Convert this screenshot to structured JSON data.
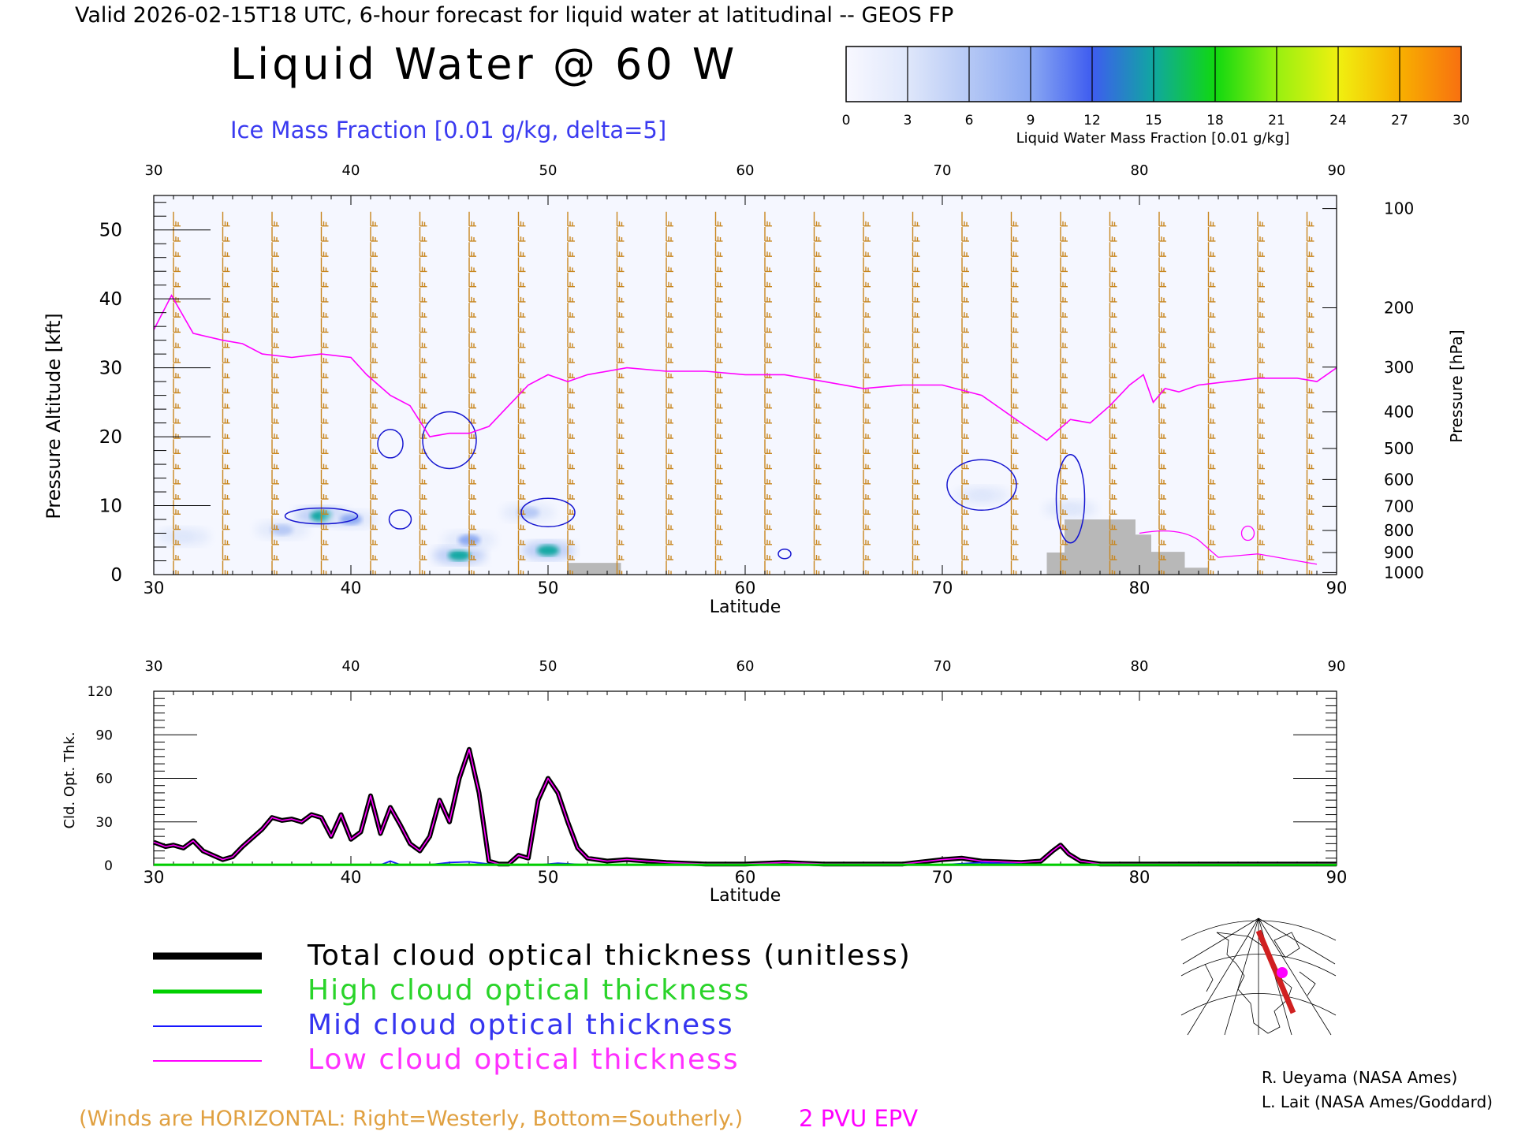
{
  "header": {
    "valid_line": "Valid 2026-02-15T18 UTC, 6-hour forecast for liquid water at latitudinal -- GEOS FP",
    "title": "Liquid Water @ 60 W",
    "subtitle": "Ice Mass Fraction [0.01 g/kg, delta=5]"
  },
  "colorbar": {
    "label": "Liquid Water Mass Fraction [0.01 g/kg]",
    "ticks": [
      "0",
      "3",
      "6",
      "9",
      "12",
      "15",
      "18",
      "21",
      "24",
      "27",
      "30"
    ],
    "colors": [
      "#f8f8ff",
      "#dfe7fb",
      "#b5c8f5",
      "#8aa8f2",
      "#3e5cf0",
      "#10a7a0",
      "#10d810",
      "#98f010",
      "#f0f010",
      "#f8b000",
      "#f87010"
    ]
  },
  "colors": {
    "wind_barb": "#c8861e",
    "epv": "#ff00ff",
    "ice_contour": "#1515d0",
    "terrain": "#b8b8b8",
    "total": "#000000",
    "high": "#00d000",
    "mid": "#1515ff",
    "low": "#ff00ff"
  },
  "chart_data": [
    {
      "type": "heatmap",
      "xlabel": "Latitude",
      "ylabel": "Pressure Altitude [kft]",
      "y2label": "Pressure [hPa]",
      "xlim": [
        30,
        90
      ],
      "ylim": [
        0,
        55
      ],
      "x_ticks": [
        "30",
        "40",
        "50",
        "60",
        "70",
        "80",
        "90"
      ],
      "y_ticks": [
        "0",
        "10",
        "20",
        "30",
        "40",
        "50"
      ],
      "pressure_ticks": [
        "100",
        "200",
        "300",
        "400",
        "500",
        "600",
        "700",
        "800",
        "900",
        "1000"
      ],
      "pressure_tick_kft": [
        53.1,
        38.7,
        30.1,
        23.6,
        18.3,
        13.8,
        9.9,
        6.4,
        3.2,
        0.3
      ],
      "epv_2pvu_line": {
        "lat": [
          30,
          30.9,
          32,
          33.5,
          34.5,
          35.5,
          37,
          38.5,
          40,
          40.8,
          42,
          43,
          44,
          45,
          46,
          47,
          48,
          49,
          50,
          51,
          52,
          54,
          56,
          58,
          60,
          62,
          64,
          66,
          68,
          70,
          72,
          74,
          75.3,
          76.5,
          77.5,
          78.5,
          79.5,
          80.2,
          80.7,
          81.3,
          82,
          83,
          84.5,
          86,
          88,
          89,
          90
        ],
        "kft": [
          35.5,
          40.5,
          35,
          34,
          33.5,
          32,
          31.5,
          32,
          31.5,
          29,
          26,
          24.5,
          20,
          20.5,
          20.5,
          21.5,
          24.5,
          27.5,
          29,
          28,
          29,
          30,
          29.5,
          29.5,
          29,
          29,
          28,
          27,
          27.5,
          27.5,
          26,
          22,
          19.5,
          22.5,
          22,
          24.5,
          27.5,
          29,
          25,
          27,
          26.5,
          27.5,
          28,
          28.5,
          28.5,
          28,
          30
        ]
      },
      "terrain_blocks": [
        {
          "lat": [
            51,
            53.7
          ],
          "kft": 1.7
        },
        {
          "lat": [
            75.3,
            76.2
          ],
          "kft": 3.2
        },
        {
          "lat": [
            76.2,
            79.8
          ],
          "kft": 8.0
        },
        {
          "lat": [
            79.8,
            80.6
          ],
          "kft": 5.8
        },
        {
          "lat": [
            80.6,
            82.3
          ],
          "kft": 3.3
        },
        {
          "lat": [
            82.3,
            83.5
          ],
          "kft": 1.0
        }
      ],
      "liquid_water_patches": [
        {
          "lat": 38.5,
          "kft": 8.5,
          "value": 15
        },
        {
          "lat": 36.5,
          "kft": 6.5,
          "value": 6
        },
        {
          "lat": 40.0,
          "kft": 8.0,
          "value": 9
        },
        {
          "lat": 45.5,
          "kft": 2.8,
          "value": 16
        },
        {
          "lat": 46.0,
          "kft": 5.0,
          "value": 9
        },
        {
          "lat": 50.0,
          "kft": 3.5,
          "value": 16
        },
        {
          "lat": 49.0,
          "kft": 9.0,
          "value": 6
        },
        {
          "lat": 31.5,
          "kft": 5.5,
          "value": 3
        },
        {
          "lat": 72.0,
          "kft": 11.5,
          "value": 3
        },
        {
          "lat": 76.5,
          "kft": 9.5,
          "value": 3
        }
      ]
    },
    {
      "type": "line",
      "xlabel": "Latitude",
      "ylabel": "Cld. Opt. Thk.",
      "xlim": [
        30,
        90
      ],
      "ylim": [
        0,
        120
      ],
      "x_ticks": [
        "30",
        "40",
        "50",
        "60",
        "70",
        "80",
        "90"
      ],
      "y_ticks": [
        "0",
        "30",
        "60",
        "90",
        "120"
      ],
      "series": [
        {
          "name": "Total cloud optical thickness (unitless)",
          "color": "#000000",
          "lat": [
            30,
            30.6,
            31,
            31.5,
            32,
            32.5,
            33,
            33.5,
            34,
            34.5,
            35,
            35.5,
            36,
            36.5,
            37,
            37.5,
            38,
            38.5,
            39,
            39.5,
            40,
            40.5,
            41,
            41.5,
            42,
            42.5,
            43,
            43.5,
            44,
            44.5,
            45,
            45.5,
            46,
            46.5,
            47,
            47.5,
            48,
            48.5,
            49,
            49.5,
            50,
            50.5,
            51,
            51.5,
            52,
            53,
            54,
            55,
            56,
            58,
            60,
            62,
            64,
            66,
            68,
            70,
            71,
            72,
            74,
            75,
            75.6,
            76,
            76.4,
            77,
            78,
            80,
            82,
            84,
            86,
            88,
            90
          ],
          "values": [
            16,
            13,
            14,
            12,
            17,
            10,
            7,
            4,
            6,
            13,
            19,
            25,
            33,
            31,
            32,
            30,
            35,
            33,
            20,
            35,
            18,
            23,
            48,
            22,
            40,
            28,
            15,
            10,
            20,
            45,
            30,
            60,
            80,
            50,
            3,
            1,
            1,
            7,
            5,
            45,
            60,
            50,
            30,
            12,
            5,
            3,
            4,
            3,
            2,
            1,
            1,
            2,
            1,
            1,
            1,
            4,
            5,
            3,
            2,
            3,
            10,
            14,
            8,
            3,
            1,
            1,
            1,
            1,
            1,
            1,
            1
          ]
        },
        {
          "name": "High cloud optical thickness",
          "color": "#00d000",
          "lat": [
            30,
            90
          ],
          "values": [
            0.5,
            0.5
          ]
        },
        {
          "name": "Mid cloud optical thickness",
          "color": "#1515ff",
          "lat": [
            30,
            41.5,
            42,
            42.5,
            44,
            45,
            46,
            47,
            48,
            49.5,
            50.5,
            52,
            60,
            70,
            72,
            75,
            90
          ],
          "values": [
            0.3,
            0.3,
            3,
            0.5,
            0.5,
            2,
            2.5,
            1,
            0.3,
            0.3,
            1.5,
            0.3,
            0.3,
            0.5,
            2,
            0.3,
            0.3
          ]
        },
        {
          "name": "Low cloud optical thickness",
          "color": "#ff00ff",
          "lat": [
            30,
            30.6,
            31,
            31.5,
            32,
            32.5,
            33,
            33.5,
            34,
            34.5,
            35,
            35.5,
            36,
            36.5,
            37,
            37.5,
            38,
            38.5,
            39,
            39.5,
            40,
            40.5,
            41,
            41.5,
            42,
            42.5,
            43,
            43.5,
            44,
            44.5,
            45,
            45.5,
            46,
            46.5,
            47,
            47.5,
            48,
            48.5,
            49,
            49.5,
            50,
            50.5,
            51,
            51.5,
            52,
            53,
            54,
            55,
            56,
            58,
            60,
            62,
            64,
            66,
            68,
            70,
            71,
            72,
            74,
            75,
            75.6,
            76,
            76.4,
            77,
            78,
            80,
            82,
            84,
            86,
            88,
            90
          ],
          "values": [
            16,
            13,
            14,
            12,
            17,
            10,
            7,
            4,
            6,
            13,
            19,
            25,
            33,
            31,
            32,
            30,
            35,
            33,
            20,
            35,
            18,
            23,
            48,
            22,
            40,
            28,
            15,
            10,
            20,
            45,
            30,
            60,
            80,
            50,
            3,
            1,
            1,
            7,
            5,
            45,
            60,
            50,
            30,
            12,
            5,
            3,
            4,
            3,
            2,
            1,
            1,
            2,
            1,
            1,
            1,
            4,
            5,
            3,
            2,
            3,
            10,
            14,
            8,
            3,
            1,
            1,
            1,
            1,
            1,
            1,
            1
          ]
        }
      ]
    }
  ],
  "legend": {
    "total": "Total cloud optical thickness (unitless)",
    "high": "High cloud optical thickness",
    "mid": "Mid cloud optical thickness",
    "low": "Low cloud optical thickness"
  },
  "footer": {
    "winds_note": "(Winds are HORIZONTAL: Right=Westerly, Bottom=Southerly.)",
    "epv_label": "2 PVU EPV",
    "credit1": "R. Ueyama (NASA Ames)",
    "credit2": "L. Lait (NASA Ames/Goddard)"
  }
}
